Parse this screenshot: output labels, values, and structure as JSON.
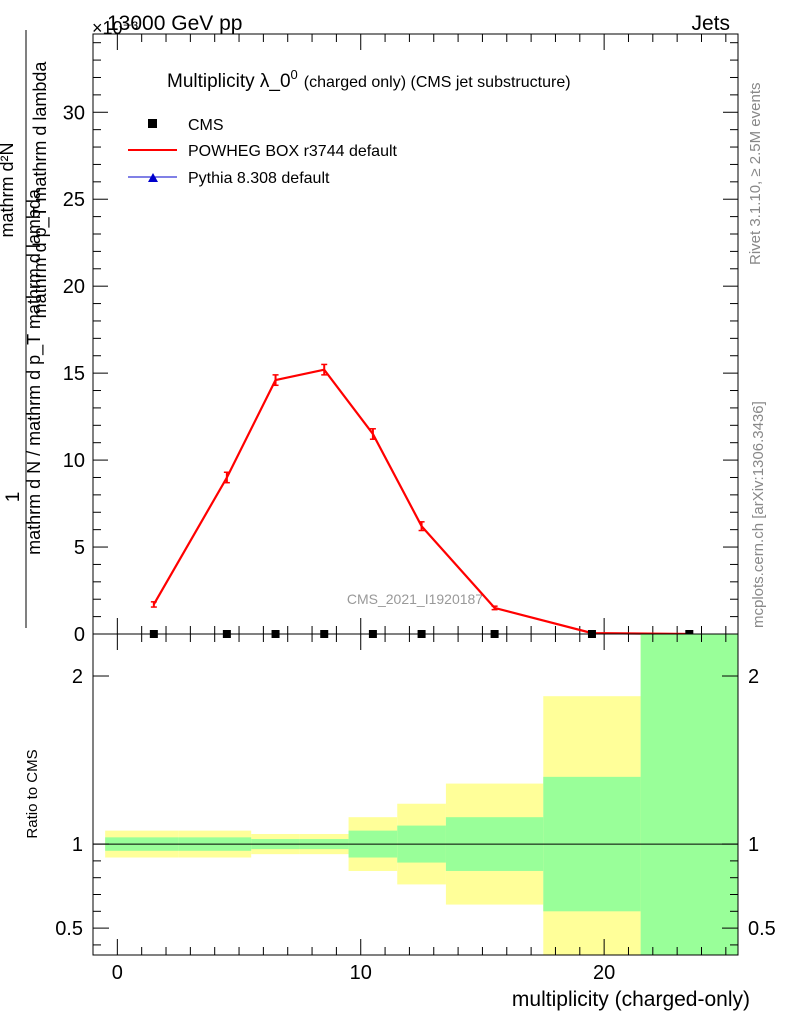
{
  "header": {
    "left": "13000 GeV pp",
    "right": "Jets",
    "exponent": "×10⁻³"
  },
  "side_labels": {
    "rivet": "Rivet 3.1.10, ≥ 2.5M events",
    "mcplots": "mcplots.cern.ch [arXiv:1306.3436]"
  },
  "chart_data": [
    {
      "type": "line",
      "title": "Multiplicity λ_0⁰ (charged only) (CMS jet substructure)",
      "title_main": "Multiplicity λ_0",
      "title_sup": "0",
      "title_rest": "(charged only) (CMS jet substructure)",
      "watermark": "CMS_2021_I1920187",
      "ylabel_top": "1",
      "ylabel_bottom": "mathrm d N / mathrm d p_T mathrm d lambda",
      "ylabel_numerator": "mathrm d²N",
      "ylabel_denominator": "mathrm d p_T mathrm d lambda",
      "xlim": [
        -1,
        25.5
      ],
      "ylim": [
        0,
        34.5
      ],
      "y_scale_note": "values in units of 10⁻³",
      "yticks": [
        0,
        5,
        10,
        15,
        20,
        25,
        30
      ],
      "legend_placement": "top-left",
      "legend": [
        {
          "label": "CMS",
          "marker": "square",
          "color": "#000000"
        },
        {
          "label": "POWHEG BOX r3744 default",
          "marker": "line",
          "color": "#ff0000"
        },
        {
          "label": "Pythia 8.308 default",
          "marker": "triangle",
          "color": "#0000cc"
        }
      ],
      "series": [
        {
          "name": "POWHEG BOX r3744 default",
          "color": "#ff0000",
          "x": [
            1.5,
            4.5,
            6.5,
            8.5,
            10.5,
            12.5,
            15.5,
            19.5,
            23.5
          ],
          "y": [
            1.7,
            9.0,
            14.6,
            15.2,
            11.5,
            6.2,
            1.5,
            0.05,
            0.0
          ],
          "yerr": [
            0.15,
            0.3,
            0.3,
            0.3,
            0.3,
            0.25,
            0.1,
            0.02,
            0.0
          ]
        },
        {
          "name": "CMS",
          "color": "#000000",
          "x": [
            1.5,
            4.5,
            6.5,
            8.5,
            10.5,
            12.5,
            15.5,
            19.5,
            23.5
          ],
          "y": [
            0.0,
            0.0,
            0.0,
            0.0,
            0.0,
            0.0,
            0.0,
            0.0,
            0.0
          ]
        }
      ]
    },
    {
      "type": "area",
      "ylabel": "Ratio to CMS",
      "xlabel": "multiplicity (charged-only)",
      "xlim": [
        -1,
        25.5
      ],
      "ylim": [
        0.34,
        2.25
      ],
      "xticks": [
        0,
        10,
        20
      ],
      "yticks": [
        0.5,
        1,
        2
      ],
      "reference_line": 1,
      "bins": [
        {
          "x0": -0.5,
          "x1": 2.5,
          "green": [
            0.96,
            1.04
          ],
          "yellow": [
            0.92,
            1.08
          ]
        },
        {
          "x0": 2.5,
          "x1": 5.5,
          "green": [
            0.96,
            1.04
          ],
          "yellow": [
            0.92,
            1.08
          ]
        },
        {
          "x0": 5.5,
          "x1": 7.5,
          "green": [
            0.97,
            1.03
          ],
          "yellow": [
            0.94,
            1.06
          ]
        },
        {
          "x0": 7.5,
          "x1": 9.5,
          "green": [
            0.97,
            1.03
          ],
          "yellow": [
            0.94,
            1.06
          ]
        },
        {
          "x0": 9.5,
          "x1": 11.5,
          "green": [
            0.92,
            1.08
          ],
          "yellow": [
            0.84,
            1.16
          ]
        },
        {
          "x0": 11.5,
          "x1": 13.5,
          "green": [
            0.89,
            1.11
          ],
          "yellow": [
            0.76,
            1.24
          ]
        },
        {
          "x0": 13.5,
          "x1": 17.5,
          "green": [
            0.84,
            1.16
          ],
          "yellow": [
            0.64,
            1.36
          ]
        },
        {
          "x0": 17.5,
          "x1": 21.5,
          "green": [
            0.6,
            1.4
          ],
          "yellow": [
            0.34,
            1.88
          ]
        },
        {
          "x0": 21.5,
          "x1": 25.5,
          "green": [
            0.34,
            2.25
          ],
          "yellow": [
            0.34,
            2.25
          ]
        }
      ]
    }
  ]
}
